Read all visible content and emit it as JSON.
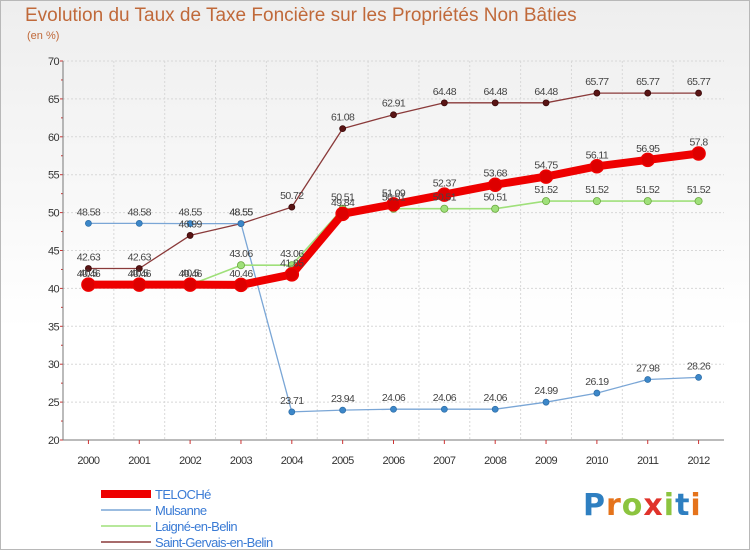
{
  "title": "Evolution du Taux de Taxe Foncière sur les Propriétés Non Bâties",
  "unit": "(en %)",
  "brand": {
    "letters": [
      {
        "ch": "P",
        "color": "#2e7fc1"
      },
      {
        "ch": "r",
        "color": "#e5731b"
      },
      {
        "ch": "o",
        "color": "#8cc43f"
      },
      {
        "ch": "x",
        "color": "#e0332b"
      },
      {
        "ch": "i",
        "color": "#8cc43f"
      },
      {
        "ch": "t",
        "color": "#2e7fc1"
      },
      {
        "ch": "i",
        "color": "#e5731b"
      }
    ]
  },
  "chart_data": {
    "type": "line",
    "title": "Evolution du Taux de Taxe Foncière sur les Propriétés Non Bâties",
    "ylabel": "(en %)",
    "xlabel": "",
    "ylim": [
      20,
      70
    ],
    "yticks": [
      20,
      25,
      30,
      35,
      40,
      45,
      50,
      55,
      60,
      65,
      70
    ],
    "x": [
      "2000",
      "2001",
      "2002",
      "2003",
      "2004",
      "2005",
      "2006",
      "2007",
      "2008",
      "2009",
      "2010",
      "2011",
      "2012"
    ],
    "legend_position": "bottom-left",
    "series": [
      {
        "name": "Saint-Gervais-en-Belin",
        "color": "#6b1e1e",
        "values": [
          42.63,
          42.63,
          46.99,
          48.55,
          50.72,
          61.08,
          62.91,
          64.48,
          64.48,
          64.48,
          65.77,
          65.77,
          65.77
        ],
        "labels": [
          "42.63",
          "42.63",
          "46.99",
          "48.55",
          "50.72",
          "61.08",
          "62.91",
          "64.48",
          "64.48",
          "64.48",
          "65.77",
          "65.77",
          "65.77"
        ]
      },
      {
        "name": "Mulsanne",
        "color": "#6699cc",
        "values": [
          48.58,
          48.58,
          48.55,
          48.55,
          23.71,
          23.94,
          24.06,
          24.06,
          24.06,
          24.99,
          26.19,
          27.98,
          28.26
        ],
        "labels": [
          "48.58",
          "48.58",
          "48.55",
          "48.55",
          "23.71",
          "23.94",
          "24.06",
          "24.06",
          "24.06",
          "24.99",
          "26.19",
          "27.98",
          "28.26"
        ]
      },
      {
        "name": "Laigné-en-Belin",
        "color": "#99dd66",
        "values": [
          40.46,
          40.46,
          40.46,
          43.06,
          43.06,
          50.51,
          50.51,
          50.51,
          50.51,
          51.52,
          51.52,
          51.52,
          51.52
        ],
        "labels": [
          "40.46",
          "40.46",
          "40.46",
          "43.06",
          "43.06",
          "50.51",
          "50.51",
          "50.51",
          "50.51",
          "51.52",
          "51.52",
          "51.52",
          "51.52"
        ]
      },
      {
        "name": "TELOCHé",
        "color": "#ee0000",
        "values": [
          40.5,
          40.5,
          40.5,
          40.46,
          41.85,
          49.84,
          51.09,
          52.37,
          53.68,
          54.75,
          56.11,
          56.95,
          57.8
        ],
        "labels": [
          "40.5",
          "40.5",
          "40.5",
          "40.46",
          "41.85",
          "49.84",
          "51.09",
          "52.37",
          "53.68",
          "54.75",
          "56.11",
          "56.95",
          "57.8"
        ]
      }
    ],
    "legend_order": [
      "TELOCHé",
      "Mulsanne",
      "Laigné-en-Belin",
      "Saint-Gervais-en-Belin"
    ]
  }
}
